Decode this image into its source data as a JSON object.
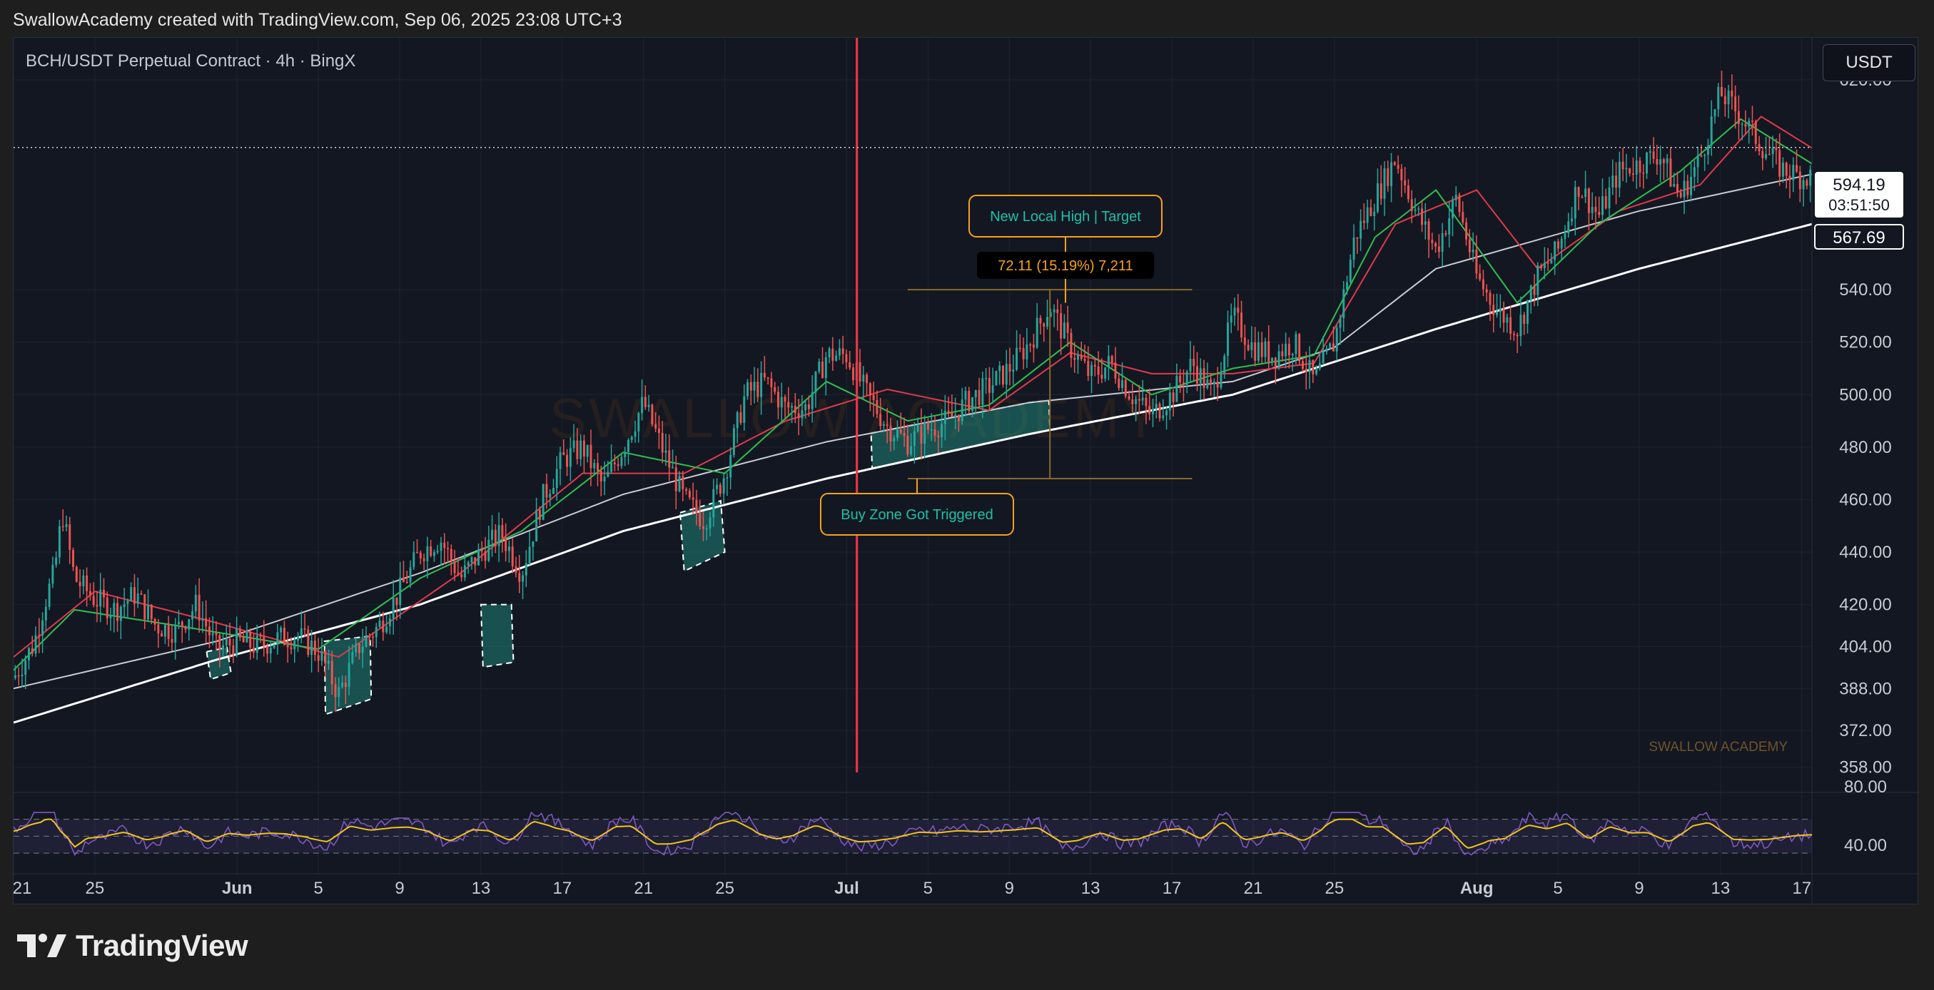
{
  "header": {
    "attribution": "SwallowAcademy created with TradingView.com, Sep 06, 2025 23:08 UTC+3"
  },
  "symbol": "BCH/USDT Perpetual Contract · 4h · BingX",
  "currency_button": "USDT",
  "watermark_center": "SWALLOW ACADEMY",
  "watermark_corner": "SWALLOW ACADEMY",
  "footer": {
    "brand": "TradingView"
  },
  "annotations": {
    "target": "New Local High | Target",
    "measure": "72.11 (15.19%) 7,211",
    "buy_zone": "Buy Zone Got Triggered"
  },
  "price_badges": [
    {
      "value": "594.19",
      "sub": "03:51:50"
    },
    {
      "value": "567.69"
    }
  ],
  "colors": {
    "background": "#131722",
    "grid": "#1f2330",
    "up": "#26a69a",
    "down": "#ef5350",
    "ema_fast": "#2fbf4f",
    "ema_mid": "#e03a4a",
    "ma_slow": "#c8cbd3",
    "ma_long": "#ffffff",
    "rsi": "#7e57c2",
    "rsi_ma": "#f0c419",
    "annotation": "#f7a21b",
    "zone": "#1e9a8a",
    "vertical_marker": "#f23645"
  },
  "chart_data": {
    "type": "candlestick",
    "timeframe": "4h",
    "y_ticks": [
      358,
      372,
      388,
      404,
      420,
      440,
      460,
      480,
      500,
      520,
      540,
      620
    ],
    "y_tick_labels": [
      "358.00",
      "372.00",
      "388.00",
      "404.00",
      "420.00",
      "440.00",
      "460.00",
      "480.00",
      "500.00",
      "520.00",
      "540.00",
      "620.00"
    ],
    "ylim": [
      356,
      636
    ],
    "x_ticks": [
      {
        "label": "21",
        "day": 0
      },
      {
        "label": "25",
        "day": 4
      },
      {
        "label": "Jun",
        "day": 11
      },
      {
        "label": "5",
        "day": 15
      },
      {
        "label": "9",
        "day": 19
      },
      {
        "label": "13",
        "day": 23
      },
      {
        "label": "17",
        "day": 27
      },
      {
        "label": "21",
        "day": 31
      },
      {
        "label": "25",
        "day": 35
      },
      {
        "label": "Jul",
        "day": 41
      },
      {
        "label": "5",
        "day": 45
      },
      {
        "label": "9",
        "day": 49
      },
      {
        "label": "13",
        "day": 53
      },
      {
        "label": "17",
        "day": 57
      },
      {
        "label": "21",
        "day": 61
      },
      {
        "label": "25",
        "day": 65
      },
      {
        "label": "Aug",
        "day": 72
      },
      {
        "label": "5",
        "day": 76
      },
      {
        "label": "9",
        "day": 80
      },
      {
        "label": "13",
        "day": 84
      },
      {
        "label": "17",
        "day": 88
      }
    ],
    "xlim_days": [
      0,
      88.5
    ],
    "price_path": [
      [
        0,
        392
      ],
      [
        1,
        405
      ],
      [
        1.5,
        420
      ],
      [
        2,
        432
      ],
      [
        2.4,
        455
      ],
      [
        3,
        430
      ],
      [
        4,
        422
      ],
      [
        5,
        418
      ],
      [
        6,
        424
      ],
      [
        7,
        412
      ],
      [
        8,
        410
      ],
      [
        9,
        420
      ],
      [
        10,
        403
      ],
      [
        11,
        406
      ],
      [
        12,
        404
      ],
      [
        13,
        407
      ],
      [
        14,
        408
      ],
      [
        15,
        402
      ],
      [
        16,
        386
      ],
      [
        17,
        404
      ],
      [
        18,
        412
      ],
      [
        19,
        425
      ],
      [
        20,
        440
      ],
      [
        21,
        445
      ],
      [
        22,
        430
      ],
      [
        23,
        440
      ],
      [
        24,
        447
      ],
      [
        25,
        432
      ],
      [
        26,
        460
      ],
      [
        27,
        475
      ],
      [
        28,
        480
      ],
      [
        29,
        465
      ],
      [
        30,
        480
      ],
      [
        31,
        497
      ],
      [
        32,
        478
      ],
      [
        33,
        460
      ],
      [
        34,
        452
      ],
      [
        35,
        470
      ],
      [
        36,
        500
      ],
      [
        37,
        505
      ],
      [
        38,
        495
      ],
      [
        39,
        495
      ],
      [
        40,
        515
      ],
      [
        41,
        515
      ],
      [
        42,
        500
      ],
      [
        43,
        488
      ],
      [
        44,
        482
      ],
      [
        45,
        487
      ],
      [
        46,
        490
      ],
      [
        47,
        498
      ],
      [
        48,
        503
      ],
      [
        49,
        510
      ],
      [
        50,
        520
      ],
      [
        51,
        534
      ],
      [
        52,
        518
      ],
      [
        53,
        507
      ],
      [
        54,
        512
      ],
      [
        55,
        500
      ],
      [
        56,
        492
      ],
      [
        57,
        500
      ],
      [
        58,
        512
      ],
      [
        59,
        500
      ],
      [
        60,
        530
      ],
      [
        61,
        518
      ],
      [
        62,
        515
      ],
      [
        63,
        520
      ],
      [
        64,
        505
      ],
      [
        65,
        520
      ],
      [
        66,
        560
      ],
      [
        67,
        575
      ],
      [
        68,
        590
      ],
      [
        69,
        570
      ],
      [
        70,
        555
      ],
      [
        71,
        575
      ],
      [
        72,
        545
      ],
      [
        73,
        532
      ],
      [
        74,
        525
      ],
      [
        75,
        545
      ],
      [
        76,
        555
      ],
      [
        77,
        580
      ],
      [
        78,
        568
      ],
      [
        79,
        585
      ],
      [
        80,
        588
      ],
      [
        81,
        592
      ],
      [
        82,
        575
      ],
      [
        83,
        590
      ],
      [
        84,
        615
      ],
      [
        85,
        606
      ],
      [
        86,
        595
      ],
      [
        87,
        586
      ],
      [
        88,
        583
      ],
      [
        88.5,
        583
      ]
    ],
    "ma_long_path": [
      [
        0,
        375
      ],
      [
        10,
        399
      ],
      [
        20,
        420
      ],
      [
        30,
        448
      ],
      [
        40,
        468
      ],
      [
        50,
        485
      ],
      [
        60,
        500
      ],
      [
        70,
        525
      ],
      [
        80,
        548
      ],
      [
        88.5,
        565
      ]
    ],
    "ma_slow_path": [
      [
        0,
        388
      ],
      [
        10,
        406
      ],
      [
        20,
        432
      ],
      [
        30,
        462
      ],
      [
        40,
        482
      ],
      [
        50,
        497
      ],
      [
        60,
        505
      ],
      [
        65,
        518
      ],
      [
        70,
        548
      ],
      [
        80,
        570
      ],
      [
        88.5,
        584
      ]
    ],
    "ema_fast_path": [
      [
        0,
        395
      ],
      [
        3,
        418
      ],
      [
        8,
        412
      ],
      [
        15,
        403
      ],
      [
        20,
        430
      ],
      [
        25,
        448
      ],
      [
        30,
        478
      ],
      [
        35,
        470
      ],
      [
        40,
        505
      ],
      [
        44,
        490
      ],
      [
        48,
        496
      ],
      [
        52,
        520
      ],
      [
        56,
        500
      ],
      [
        60,
        510
      ],
      [
        64,
        515
      ],
      [
        67,
        560
      ],
      [
        70,
        578
      ],
      [
        74,
        535
      ],
      [
        78,
        565
      ],
      [
        82,
        585
      ],
      [
        85,
        605
      ],
      [
        88.5,
        588
      ]
    ],
    "ema_mid_path": [
      [
        0,
        400
      ],
      [
        4,
        425
      ],
      [
        10,
        413
      ],
      [
        16,
        400
      ],
      [
        22,
        432
      ],
      [
        28,
        470
      ],
      [
        33,
        470
      ],
      [
        38,
        490
      ],
      [
        43,
        502
      ],
      [
        48,
        494
      ],
      [
        52,
        516
      ],
      [
        56,
        508
      ],
      [
        60,
        508
      ],
      [
        64,
        512
      ],
      [
        68,
        565
      ],
      [
        72,
        578
      ],
      [
        75,
        548
      ],
      [
        79,
        570
      ],
      [
        83,
        580
      ],
      [
        86,
        606
      ],
      [
        88.5,
        594
      ]
    ],
    "rsi_axis_labels": [
      "80.00",
      "40.00"
    ],
    "rsi_bands": [
      30,
      50,
      70
    ]
  }
}
